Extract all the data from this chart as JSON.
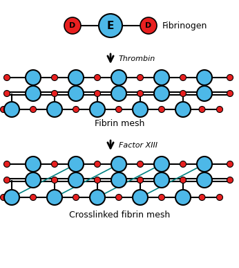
{
  "bg_color": "#ffffff",
  "blue_color": "#4db8e8",
  "red_color": "#e82020",
  "black_color": "#000000",
  "cyan_color": "#008080",
  "fibrinogen_label": "Fibrinogen",
  "thrombin_label": "Thrombin",
  "fibrin_label": "Fibrin mesh",
  "factorXIII_label": "Factor XIII",
  "crosslinked_label": "Crosslinked fibrin mesh",
  "figsize": [
    3.46,
    3.87
  ],
  "dpi": 100,
  "xlim": [
    0,
    346
  ],
  "ylim": [
    0,
    387
  ]
}
